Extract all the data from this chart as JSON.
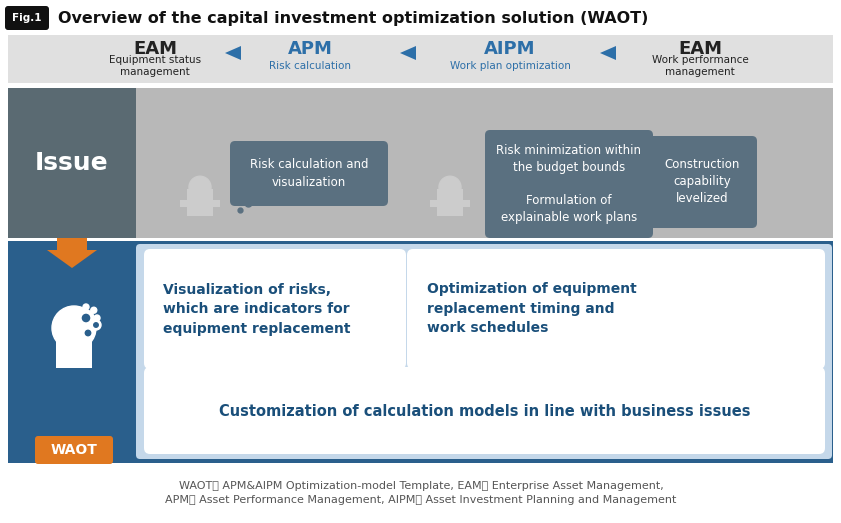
{
  "title": "Overview of the capital investment optimization solution (WAOT)",
  "fig_label": "Fig.1",
  "bg_color": "#ffffff",
  "top_bar_bg": "#e0e0e0",
  "flow_items": [
    {
      "label": "EAM",
      "sublabel": "Equipment status\nmanagement",
      "label_color": "#222222",
      "sublabel_color": "#222222"
    },
    {
      "label": "APM",
      "sublabel": "Risk calculation",
      "label_color": "#2d6fa8",
      "sublabel_color": "#2d6fa8"
    },
    {
      "label": "AIPM",
      "sublabel": "Work plan optimization",
      "label_color": "#2d6fa8",
      "sublabel_color": "#2d6fa8"
    },
    {
      "label": "EAM",
      "sublabel": "Work performance\nmanagement",
      "label_color": "#222222",
      "sublabel_color": "#222222"
    }
  ],
  "arrow_color": "#2d6fa8",
  "issue_bg": "#b8b8b8",
  "issue_left_bg": "#5a6a72",
  "issue_label": "Issue",
  "issue_label_color": "#ffffff",
  "issue_box_bg": "#5a7080",
  "issue_box_text_color": "#ffffff",
  "issue_boxes": [
    "Risk calculation and\nvisualization",
    "Risk minimization within\nthe budget bounds",
    "Formulation of\nexplainable work plans",
    "Construction\ncapability\nlevelized"
  ],
  "waot_bg": "#2a5f8c",
  "waot_inner_bg": "#c5d8ea",
  "waot_label": "WAOT",
  "waot_label_color": "#ffffff",
  "waot_orange": "#e07820",
  "waot_boxes": [
    "Visualization of risks,\nwhich are indicators for\nequipment replacement",
    "Optimization of equipment\nreplacement timing and\nwork schedules",
    "Customization of calculation models in line with business issues"
  ],
  "waot_box_text_color": "#1a4f7a",
  "footer_text": "WAOT： APM&AIPM Optimization-model Template, EAM： Enterprise Asset Management,\nAPM： Asset Performance Management, AIPM： Asset Investment Planning and Management",
  "footer_color": "#555555"
}
